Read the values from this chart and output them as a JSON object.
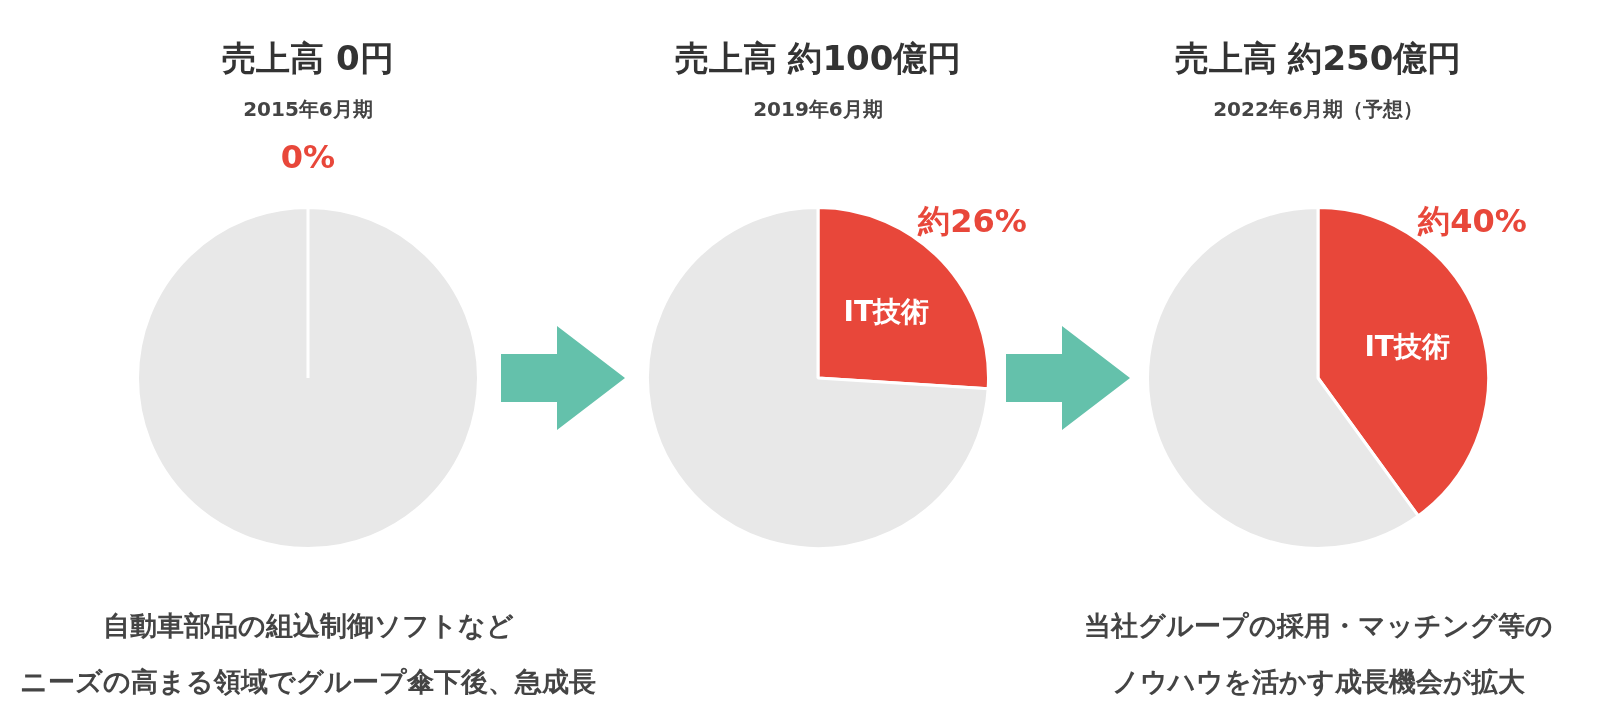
{
  "chart_data": [
    {
      "type": "pie",
      "title": "売上高 0円",
      "subtitle": "2015年6月期",
      "categories": [
        null,
        null
      ],
      "values": [
        0,
        100
      ],
      "colors": [
        "#e8473a",
        "#e8e8e8"
      ],
      "value_labels": [
        "0%",
        null
      ],
      "annotations": [
        "自動車部品の組込制御ソフトなど",
        "ニーズの高まる領域でグループ傘下後、急成長"
      ]
    },
    {
      "type": "pie",
      "title": "売上高 約100億円",
      "subtitle": "2019年6月期",
      "categories": [
        "IT技術",
        null
      ],
      "values": [
        26,
        74
      ],
      "colors": [
        "#e8473a",
        "#e8e8e8"
      ],
      "value_labels": [
        "約26%",
        null
      ]
    },
    {
      "type": "pie",
      "title": "売上高 約250億円",
      "subtitle": "2022年6月期（予想）",
      "categories": [
        "IT技術",
        null
      ],
      "values": [
        40,
        60
      ],
      "colors": [
        "#e8473a",
        "#e8e8e8"
      ],
      "value_labels": [
        "約40%",
        null
      ],
      "annotations": [
        "当社グループの採用・マッチング等の",
        "ノウハウを活かす成長機会が拡大"
      ]
    }
  ]
}
